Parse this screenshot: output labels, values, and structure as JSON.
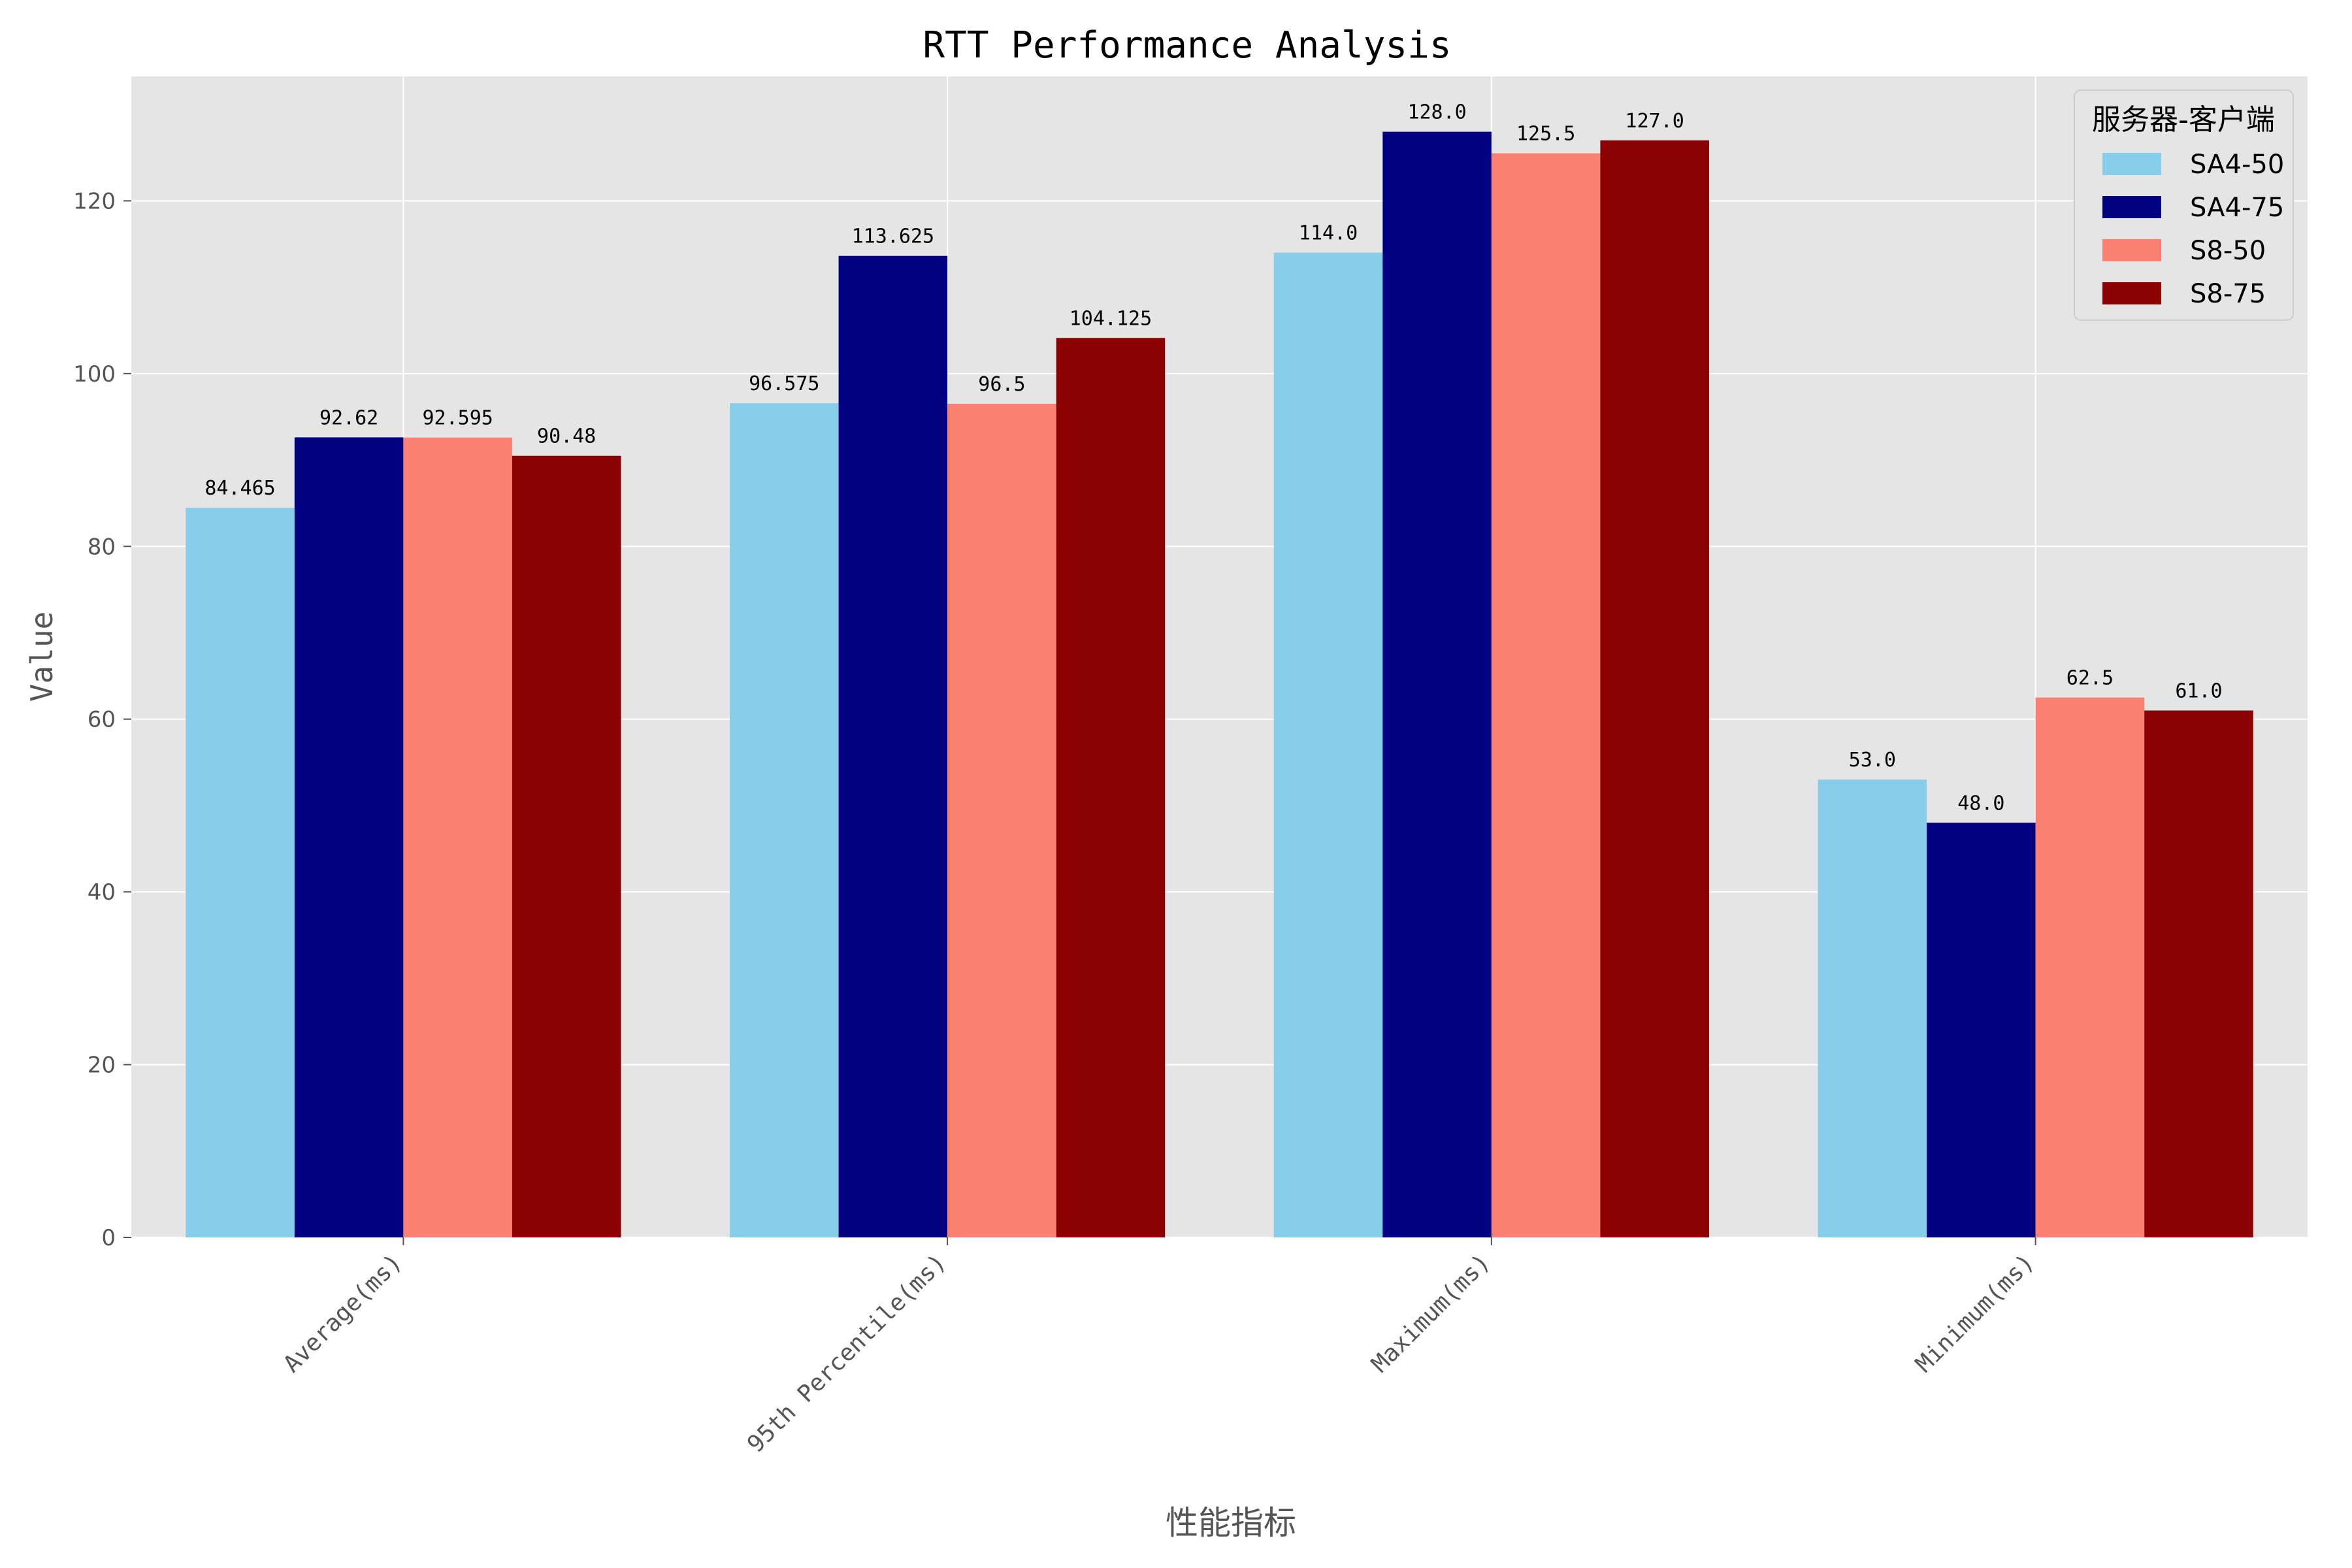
{
  "chart_data": {
    "type": "bar",
    "title": "RTT Performance Analysis",
    "xlabel": "性能指标",
    "ylabel": "Value",
    "categories": [
      "Average(ms)",
      "95th Percentile(ms)",
      "Maximum(ms)",
      "Minimum(ms)"
    ],
    "series": [
      {
        "name": "SA4-50",
        "color": "#87ceeb",
        "values": [
          84.465,
          96.575,
          114.0,
          53.0
        ],
        "labels": [
          "84.465",
          "96.575",
          "114.0",
          "53.0"
        ]
      },
      {
        "name": "SA4-75",
        "color": "#000080",
        "values": [
          92.62,
          113.625,
          128.0,
          48.0
        ],
        "labels": [
          "92.62",
          "113.625",
          "128.0",
          "48.0"
        ]
      },
      {
        "name": "S8-50",
        "color": "#fa8072",
        "values": [
          92.595,
          96.5,
          125.5,
          62.5
        ],
        "labels": [
          "92.595",
          "96.5",
          "125.5",
          "62.5"
        ]
      },
      {
        "name": "S8-75",
        "color": "#8b0000",
        "values": [
          90.48,
          104.125,
          127.0,
          61.0
        ],
        "labels": [
          "90.48",
          "104.125",
          "127.0",
          "61.0"
        ]
      }
    ],
    "ylim": [
      0,
      134.4
    ],
    "yticks": [
      0,
      20,
      40,
      60,
      80,
      100,
      120
    ],
    "legend": {
      "title": "服务器-客户端",
      "position": "top-right"
    },
    "grid": true,
    "colors": {
      "plot_background": "#e5e5e5",
      "grid": "#ffffff",
      "tick_text": "#555555"
    }
  }
}
